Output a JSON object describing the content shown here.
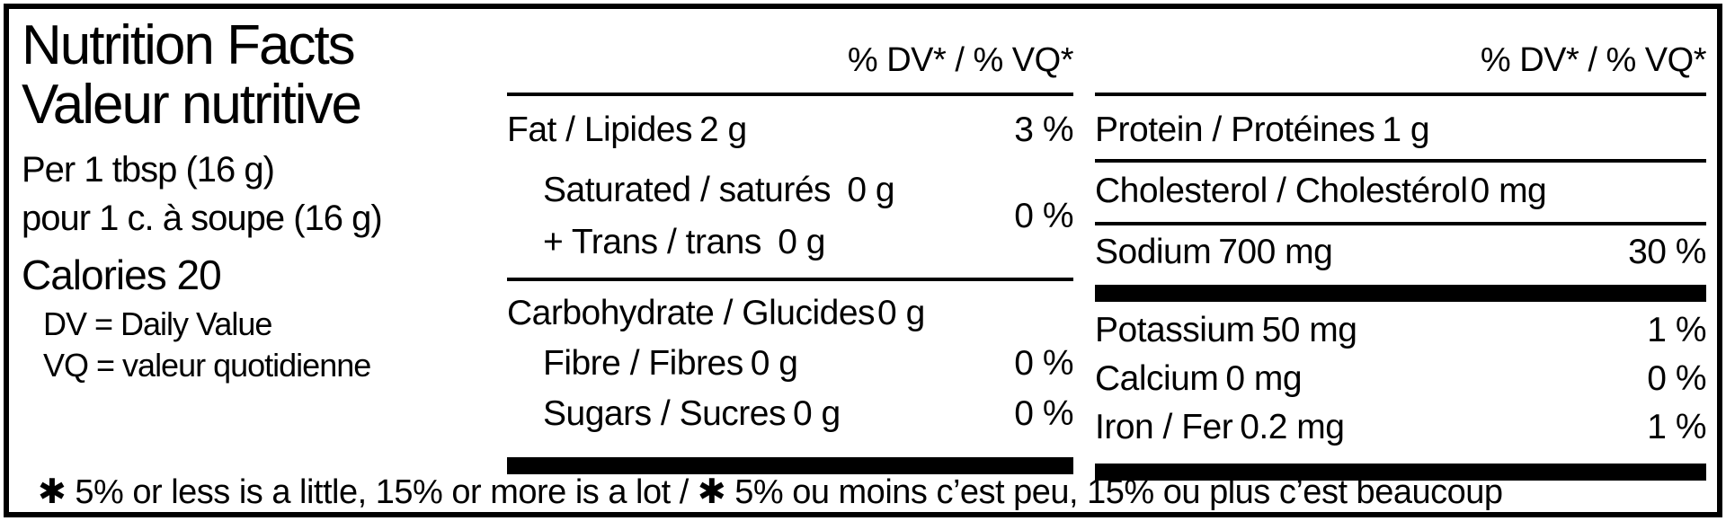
{
  "colors": {
    "ink": "#000000",
    "paper": "#ffffff"
  },
  "header": {
    "title_en": "Nutrition Facts",
    "title_fr": "Valeur nutritive",
    "serving_en": "Per 1 tbsp (16 g)",
    "serving_fr": "pour 1 c. à soupe (16 g)",
    "calories": "Calories 20",
    "dv_def_en": "DV = Daily Value",
    "dv_def_fr": "VQ = valeur quotidienne"
  },
  "middle": {
    "dv_header": "% DV* / % VQ*",
    "fat": {
      "name": "Fat / Lipides",
      "amount": "2 g",
      "dv": "3 %"
    },
    "saturated": {
      "name": "Saturated / saturés",
      "amount": "0 g"
    },
    "trans": {
      "name": "+ Trans / trans",
      "amount": "0 g"
    },
    "sat_trans_dv": "0 %",
    "carbohydrate": {
      "name": "Carbohydrate / Glucides",
      "amount": "0 g"
    },
    "fibre": {
      "name": "Fibre / Fibres",
      "amount": "0 g",
      "dv": "0 %"
    },
    "sugars": {
      "name": "Sugars / Sucres",
      "amount": "0 g",
      "dv": "0 %"
    }
  },
  "right": {
    "dv_header": "% DV* / % VQ*",
    "protein": {
      "name": "Protein / Protéines",
      "amount": "1 g"
    },
    "cholesterol": {
      "name": "Cholesterol / Cholestérol",
      "amount": "0 mg"
    },
    "sodium": {
      "name": "Sodium",
      "amount": "700 mg",
      "dv": "30 %"
    },
    "potassium": {
      "name": "Potassium",
      "amount": "50 mg",
      "dv": "1 %"
    },
    "calcium": {
      "name": "Calcium",
      "amount": "0 mg",
      "dv": "0 %"
    },
    "iron": {
      "name": "Iron / Fer",
      "amount": "0.2 mg",
      "dv": "1 %"
    }
  },
  "footnote": "✱ 5% or less is a little, 15% or more is a lot / ✱ 5% ou moins c’est peu, 15% ou plus c’est beaucoup"
}
